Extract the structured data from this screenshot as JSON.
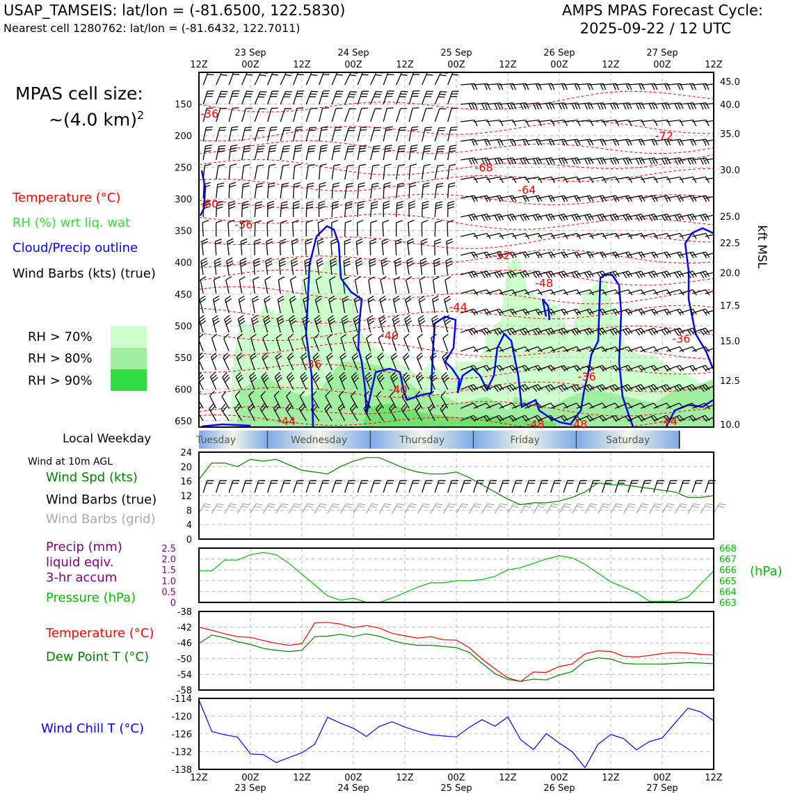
{
  "header": {
    "station_title": "USAP_TAMSEIS: lat/lon = (-81.6500, 122.5830)",
    "nearest_cell": "Nearest cell 1280762: lat/lon = (-81.6432, 122.7011)",
    "cycle_line1": "AMPS MPAS Forecast Cycle:",
    "cycle_line2": "2025-09-22 / 12 UTC"
  },
  "sidebar": {
    "cell_size_line1": "MPAS cell size:",
    "cell_size_line2": "~(4.0 km)",
    "cell_size_sup": "2",
    "legend": [
      {
        "label": "Temperature (°C)",
        "color": "#ff0000"
      },
      {
        "label": "RH (%) wrt liq. wat",
        "color": "#33dd33"
      },
      {
        "label": "Cloud/Precip outline",
        "color": "#0000ff"
      },
      {
        "label": "Wind Barbs (kts) (true)",
        "color": "#000000"
      }
    ],
    "rh_levels": [
      {
        "label": "RH > 70%",
        "color": "#ccffcc"
      },
      {
        "label": "RH > 80%",
        "color": "#a0eea0"
      },
      {
        "label": "RH > 90%",
        "color": "#33dd44"
      }
    ],
    "local_weekday": "Local Weekday",
    "wind10m": "Wind at 10m AGL",
    "wind_legend": [
      {
        "label": "Wind Spd (kts)",
        "color": "#008000"
      },
      {
        "label": "Wind Barbs (true)",
        "color": "#000000"
      },
      {
        "label": "Wind Barbs (grid)",
        "color": "#aaaaaa"
      }
    ],
    "precip_legend": [
      {
        "label": "Precip (mm)",
        "color": "#800080"
      },
      {
        "label": "liquid eqiv.",
        "color": "#800080"
      },
      {
        "label": "3-hr accum",
        "color": "#800080"
      },
      {
        "label": "Pressure (hPa)",
        "color": "#00bb00"
      }
    ],
    "temp_legend": [
      {
        "label": "Temperature (°C)",
        "color": "#ff0000"
      },
      {
        "label": "Dew Point T (°C)",
        "color": "#008000"
      }
    ],
    "windchill_legend": {
      "label": "Wind Chill T (°C)",
      "color": "#0000ff"
    }
  },
  "chart_data": [
    {
      "type": "time-height",
      "name": "cross-section",
      "x_ticks": [
        "12Z",
        "00Z",
        "12Z",
        "00Z",
        "12Z",
        "00Z",
        "12Z",
        "00Z",
        "12Z",
        "00Z",
        "12Z"
      ],
      "x_dates": [
        "23 Sep",
        "24 Sep",
        "25 Sep",
        "26 Sep",
        "27 Sep"
      ],
      "y_left_ticks": [
        150,
        200,
        250,
        300,
        350,
        400,
        450,
        500,
        550,
        600,
        650
      ],
      "y_right_ticks": [
        "45.0",
        "40.0",
        "35.0",
        "30.0",
        "25.0",
        "22.5",
        "20.0",
        "17.5",
        "15.0",
        "12.5",
        "10.0"
      ],
      "y_right_label": "kft MSL",
      "temp_contour_labels": [
        {
          "text": "-36",
          "hour": 0,
          "p": 165
        },
        {
          "text": "-72",
          "hour": 106,
          "p": 200
        },
        {
          "text": "-68",
          "hour": 64,
          "p": 250
        },
        {
          "text": "-64",
          "hour": 74,
          "p": 285
        },
        {
          "text": "-60",
          "hour": 0,
          "p": 307
        },
        {
          "text": "-56",
          "hour": 8,
          "p": 340
        },
        {
          "text": "-52",
          "hour": 68,
          "p": 388
        },
        {
          "text": "-48",
          "hour": 78,
          "p": 432
        },
        {
          "text": "-44",
          "hour": 58,
          "p": 470
        },
        {
          "text": "-40",
          "hour": 42,
          "p": 515
        },
        {
          "text": "-36",
          "hour": 24,
          "p": 560
        },
        {
          "text": "-36",
          "hour": 110,
          "p": 520
        },
        {
          "text": "-40",
          "hour": 44,
          "p": 600
        },
        {
          "text": "-44",
          "hour": 18,
          "p": 650
        },
        {
          "text": "-36",
          "hour": 88,
          "p": 580
        },
        {
          "text": "-48",
          "hour": 76,
          "p": 655
        },
        {
          "text": "-48",
          "hour": 86,
          "p": 655
        },
        {
          "text": "-44",
          "hour": 107,
          "p": 650
        }
      ],
      "weekdays": [
        "Tuesday",
        "Wednesday",
        "Thursday",
        "Friday",
        "Saturday"
      ]
    },
    {
      "type": "line",
      "name": "wind-speed-10m",
      "x_hours": [
        0,
        3,
        6,
        9,
        12,
        15,
        18,
        21,
        24,
        27,
        30,
        33,
        36,
        39,
        42,
        45,
        48,
        51,
        54,
        57,
        60,
        63,
        66,
        69,
        72,
        75,
        78,
        81,
        84,
        87,
        90,
        93,
        96,
        99,
        102,
        105,
        108,
        111,
        114,
        117,
        120
      ],
      "series": [
        {
          "name": "Wind Spd (kts)",
          "values": [
            16.5,
            21,
            21,
            20,
            22,
            21.5,
            22,
            20.5,
            19,
            18.5,
            18,
            20,
            21.5,
            22.5,
            22.5,
            21,
            19.5,
            18.5,
            18,
            18,
            18.5,
            17,
            15,
            13,
            11,
            9.5,
            10,
            10,
            10.5,
            11.5,
            13,
            15.5,
            15,
            15,
            14.5,
            14,
            13.5,
            13,
            11.5,
            11.5,
            12
          ]
        }
      ],
      "ylim": [
        0,
        24
      ],
      "y_ticks": [
        0,
        4,
        8,
        12,
        16,
        20,
        24
      ]
    },
    {
      "type": "line",
      "name": "precip-pressure",
      "x_hours": [
        0,
        3,
        6,
        9,
        12,
        15,
        18,
        21,
        24,
        27,
        30,
        33,
        36,
        39,
        42,
        45,
        48,
        51,
        54,
        57,
        60,
        63,
        66,
        69,
        72,
        75,
        78,
        81,
        84,
        87,
        90,
        93,
        96,
        99,
        102,
        105,
        108,
        111,
        114,
        117,
        120
      ],
      "series": [
        {
          "name": "Pressure (hPa)",
          "values": [
            665.9,
            665.9,
            666.9,
            666.9,
            667.4,
            667.6,
            667.4,
            666.6,
            665.6,
            664.6,
            663.6,
            663.2,
            663.4,
            663.0,
            663.0,
            663.4,
            663.9,
            664.4,
            664.8,
            664.8,
            665.0,
            665.0,
            665.1,
            665.4,
            666.0,
            666.2,
            666.6,
            667.0,
            667.3,
            667.1,
            666.5,
            665.7,
            664.9,
            664.4,
            663.9,
            663.1,
            663.1,
            663.1,
            663.5,
            664.7,
            665.9
          ]
        }
      ],
      "y_left_ticks": [
        "0",
        "0.5",
        "1.0",
        "1.5",
        "2.0",
        "2.5"
      ],
      "y_right_ticks": [
        "663",
        "664",
        "665",
        "666",
        "667",
        "668"
      ],
      "y_right_label": "(hPa)",
      "plim": [
        663,
        668
      ]
    },
    {
      "type": "line",
      "name": "temperature-dewpoint",
      "x_hours": [
        0,
        3,
        6,
        9,
        12,
        15,
        18,
        21,
        24,
        27,
        30,
        33,
        36,
        39,
        42,
        45,
        48,
        51,
        54,
        57,
        60,
        63,
        66,
        69,
        72,
        75,
        78,
        81,
        84,
        87,
        90,
        93,
        96,
        99,
        102,
        105,
        108,
        111,
        114,
        117,
        120
      ],
      "series": [
        {
          "name": "Temperature (°C)",
          "values": [
            -42.0,
            -42.8,
            -43.7,
            -44.4,
            -44.6,
            -45.4,
            -46.1,
            -46.6,
            -46.2,
            -40.9,
            -40.8,
            -41.2,
            -42.1,
            -41.6,
            -42.2,
            -43.6,
            -44.2,
            -44.8,
            -44.4,
            -45.2,
            -45.3,
            -47.2,
            -50.1,
            -52.6,
            -54.9,
            -55.8,
            -53.4,
            -53.5,
            -52.0,
            -51.4,
            -48.8,
            -48.0,
            -48.2,
            -49.4,
            -49.6,
            -49.2,
            -48.7,
            -48.4,
            -48.6,
            -48.9,
            -49.1
          ]
        },
        {
          "name": "Dew Point T (°C)",
          "values": [
            -46.2,
            -44.0,
            -44.7,
            -45.7,
            -46.4,
            -47.4,
            -47.9,
            -48.2,
            -47.9,
            -44.4,
            -44.3,
            -43.8,
            -44.4,
            -43.7,
            -44.3,
            -45.4,
            -46.2,
            -46.6,
            -46.6,
            -46.9,
            -47.2,
            -48.4,
            -51.2,
            -53.8,
            -55.3,
            -55.8,
            -55.2,
            -55.4,
            -54.2,
            -53.3,
            -50.6,
            -49.8,
            -50.1,
            -51.2,
            -51.4,
            -51.4,
            -51.4,
            -51.2,
            -51.0,
            -51.1,
            -51.3
          ]
        }
      ],
      "ylim": [
        -58,
        -38
      ],
      "y_ticks": [
        -38,
        -42,
        -46,
        -50,
        -54,
        -58
      ]
    },
    {
      "type": "line",
      "name": "wind-chill",
      "x_hours": [
        0,
        3,
        6,
        9,
        12,
        15,
        18,
        21,
        24,
        27,
        30,
        33,
        36,
        39,
        42,
        45,
        48,
        51,
        54,
        57,
        60,
        63,
        66,
        69,
        72,
        75,
        78,
        81,
        84,
        87,
        90,
        93,
        96,
        99,
        102,
        105,
        108,
        111,
        114,
        117,
        120
      ],
      "series": [
        {
          "name": "Wind Chill T (°C)",
          "values": [
            -114.5,
            -125.2,
            -126.3,
            -127.1,
            -132.8,
            -133.0,
            -135.7,
            -134.0,
            -132.4,
            -129.5,
            -120.4,
            -122.4,
            -124.1,
            -126.9,
            -123.5,
            -121.9,
            -123.7,
            -125.1,
            -126.3,
            -126.7,
            -127.0,
            -123.8,
            -121.2,
            -123.4,
            -120.3,
            -128.0,
            -131.3,
            -125.9,
            -129.1,
            -132.0,
            -137.4,
            -129.6,
            -126.2,
            -127.6,
            -131.4,
            -128.6,
            -127.4,
            -122.3,
            -117.3,
            -118.6,
            -121.6
          ]
        }
      ],
      "ylim": [
        -138,
        -114
      ],
      "y_ticks": [
        -114,
        -120,
        -126,
        -132,
        -138
      ]
    }
  ]
}
